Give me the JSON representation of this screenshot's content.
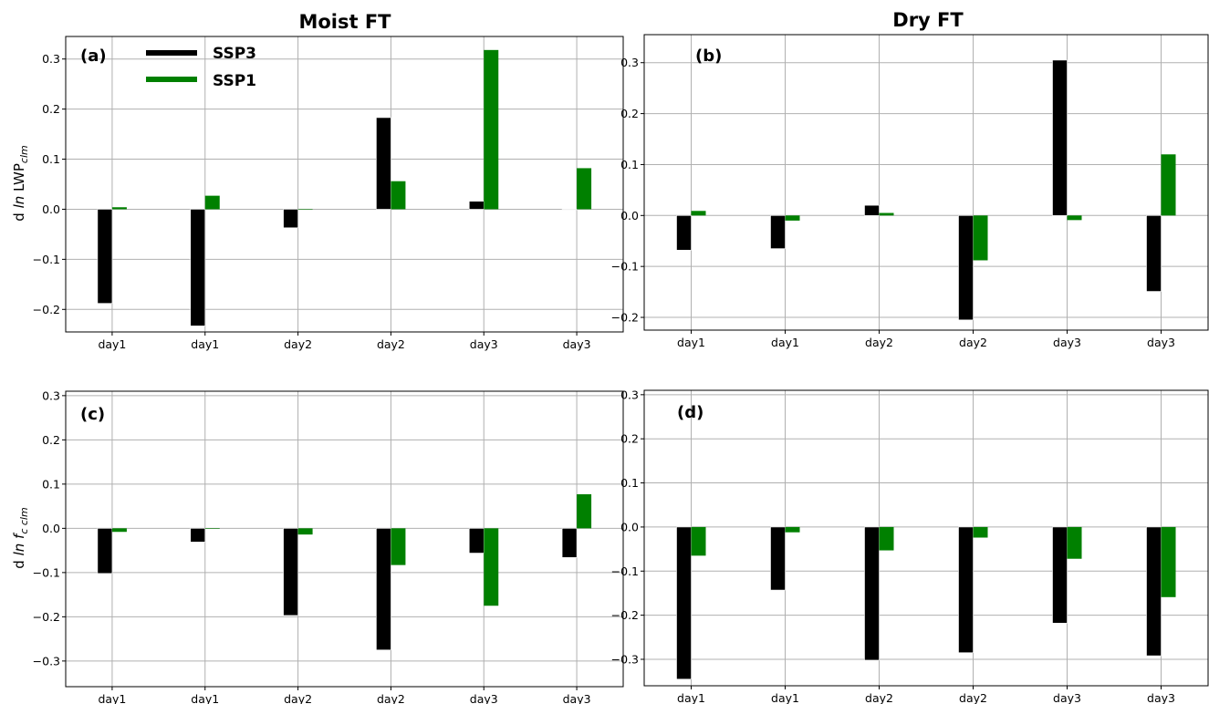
{
  "figure": {
    "column_titles": [
      "Moist FT",
      "Dry FT"
    ],
    "legend": [
      {
        "label": "SSP3",
        "color": "#000000"
      },
      {
        "label": "SSP1",
        "color": "#008000"
      }
    ],
    "ylabels": {
      "top": {
        "prefix": "d ",
        "ln": "ln",
        "main": " LWP",
        "sub": "clm"
      },
      "bottom": {
        "prefix": "d ",
        "ln": "ln",
        "main": " f",
        "sub": "c clm"
      }
    }
  },
  "chart_data": [
    {
      "type": "bar",
      "panel": "(a)",
      "title": "Moist FT",
      "categories": [
        "day1",
        "day1",
        "day2",
        "day2",
        "day3",
        "day3"
      ],
      "ylim": [
        -0.245,
        0.345
      ],
      "yticks": [
        -0.2,
        -0.1,
        0.0,
        0.1,
        0.2,
        0.3
      ],
      "grid": true,
      "legend_position": "top-left",
      "series": [
        {
          "name": "SSP3",
          "color": "#000000",
          "values": [
            -0.188,
            -0.233,
            -0.037,
            0.183,
            0.016,
            -0.001
          ]
        },
        {
          "name": "SSP1",
          "color": "#008000",
          "values": [
            0.004,
            0.027,
            0.0,
            0.056,
            0.318,
            0.082
          ]
        }
      ]
    },
    {
      "type": "bar",
      "panel": "(b)",
      "title": "Dry FT",
      "categories": [
        "day1",
        "day1",
        "day2",
        "day2",
        "day3",
        "day3"
      ],
      "ylim": [
        -0.225,
        0.355
      ],
      "yticks": [
        -0.2,
        -0.1,
        0.0,
        0.1,
        0.2,
        0.3
      ],
      "grid": true,
      "series": [
        {
          "name": "SSP3",
          "color": "#000000",
          "values": [
            -0.068,
            -0.065,
            0.02,
            -0.205,
            0.305,
            -0.149
          ]
        },
        {
          "name": "SSP1",
          "color": "#008000",
          "values": [
            0.009,
            -0.01,
            0.005,
            -0.088,
            -0.009,
            0.12
          ]
        }
      ]
    },
    {
      "type": "bar",
      "panel": "(c)",
      "categories": [
        "day1",
        "day1",
        "day2",
        "day2",
        "day3",
        "day3"
      ],
      "ylim": [
        -0.358,
        0.31
      ],
      "yticks": [
        -0.3,
        -0.2,
        -0.1,
        0.0,
        0.1,
        0.2,
        0.3
      ],
      "grid": true,
      "series": [
        {
          "name": "SSP3",
          "color": "#000000",
          "values": [
            -0.102,
            -0.031,
            -0.197,
            -0.275,
            -0.056,
            -0.066
          ]
        },
        {
          "name": "SSP1",
          "color": "#008000",
          "values": [
            -0.008,
            0.0,
            -0.014,
            -0.083,
            -0.175,
            0.077
          ]
        }
      ]
    },
    {
      "type": "bar",
      "panel": "(d)",
      "categories": [
        "day1",
        "day1",
        "day2",
        "day2",
        "day3",
        "day3"
      ],
      "ylim": [
        -0.36,
        0.31
      ],
      "yticks": [
        -0.3,
        -0.2,
        -0.1,
        0.0,
        0.1,
        0.2,
        0.3
      ],
      "grid": true,
      "series": [
        {
          "name": "SSP3",
          "color": "#000000",
          "values": [
            -0.345,
            -0.143,
            -0.302,
            -0.285,
            -0.218,
            -0.292
          ]
        },
        {
          "name": "SSP1",
          "color": "#008000",
          "values": [
            -0.065,
            -0.012,
            -0.053,
            -0.024,
            -0.072,
            -0.159
          ]
        }
      ]
    }
  ]
}
